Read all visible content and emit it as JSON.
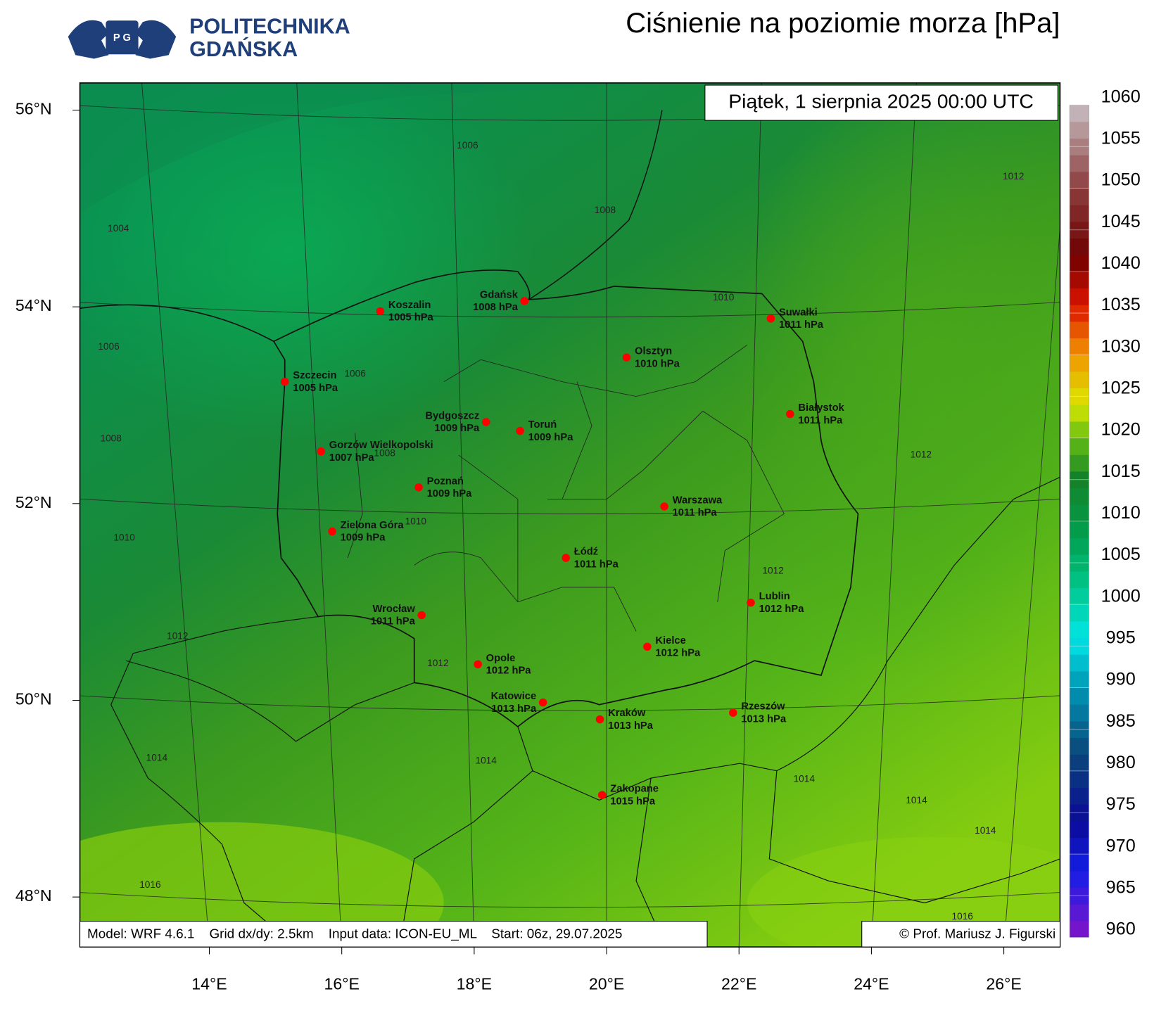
{
  "header": {
    "logo_line1": "POLITECHNIKA",
    "logo_line2": "GDAŃSKA",
    "title": "Ciśnienie na poziomie morza [hPa]"
  },
  "valid_time": "Piątek, 1 sierpnia 2025 00:00 UTC",
  "cities": [
    {
      "name": "Koszalin",
      "value": 1005,
      "value_label": "1005 hPa"
    },
    {
      "name": "Gdańsk",
      "value": 1008,
      "value_label": "1008 hPa"
    },
    {
      "name": "Szczecin",
      "value": 1005,
      "value_label": "1005 hPa"
    },
    {
      "name": "Bydgoszcz",
      "value": 1009,
      "value_label": "1009 hPa"
    },
    {
      "name": "Toruń",
      "value": 1009,
      "value_label": "1009 hPa"
    },
    {
      "name": "Gorzów Wielkopolski",
      "value": 1007,
      "value_label": "1007 hPa"
    },
    {
      "name": "Poznań",
      "value": 1009,
      "value_label": "1009 hPa"
    },
    {
      "name": "Zielona Góra",
      "value": 1009,
      "value_label": "1009 hPa"
    },
    {
      "name": "Wrocław",
      "value": 1011,
      "value_label": "1011 hPa"
    },
    {
      "name": "Opole",
      "value": 1012,
      "value_label": "1012 hPa"
    },
    {
      "name": "Katowice",
      "value": 1013,
      "value_label": "1013 hPa"
    },
    {
      "name": "Kraków",
      "value": 1013,
      "value_label": "1013 hPa"
    },
    {
      "name": "Zakopane",
      "value": 1015,
      "value_label": "1015 hPa"
    },
    {
      "name": "Łódź",
      "value": 1011,
      "value_label": "1011 hPa"
    },
    {
      "name": "Warszawa",
      "value": 1011,
      "value_label": "1011 hPa"
    },
    {
      "name": "Olsztyn",
      "value": 1010,
      "value_label": "1010 hPa"
    },
    {
      "name": "Suwałki",
      "value": 1011,
      "value_label": "1011 hPa"
    },
    {
      "name": "Białystok",
      "value": 1011,
      "value_label": "1011 hPa"
    },
    {
      "name": "Lublin",
      "value": 1012,
      "value_label": "1012 hPa"
    },
    {
      "name": "Kielce",
      "value": 1012,
      "value_label": "1012 hPa"
    },
    {
      "name": "Rzeszów",
      "value": 1013,
      "value_label": "1013 hPa"
    }
  ],
  "contour_labels": [
    1006,
    1008,
    1004,
    1006,
    1006,
    1008,
    1008,
    1010,
    1012,
    1012,
    1010,
    1010,
    1012,
    1012,
    1012,
    1014,
    1014,
    1014,
    1014,
    1014,
    1016,
    1016
  ],
  "lat_ticks": [
    {
      "value": 56,
      "label": "56°N"
    },
    {
      "value": 54,
      "label": "54°N"
    },
    {
      "value": 52,
      "label": "52°N"
    },
    {
      "value": 50,
      "label": "50°N"
    },
    {
      "value": 48,
      "label": "48°N"
    }
  ],
  "lon_ticks": [
    {
      "value": 14,
      "label": "14°E"
    },
    {
      "value": 16,
      "label": "16°E"
    },
    {
      "value": 18,
      "label": "18°E"
    },
    {
      "value": 20,
      "label": "20°E"
    },
    {
      "value": 22,
      "label": "22°E"
    },
    {
      "value": 24,
      "label": "24°E"
    },
    {
      "value": 26,
      "label": "26°E"
    }
  ],
  "colorbar": {
    "lim": [
      960,
      1060
    ],
    "ticks": [
      960,
      965,
      970,
      975,
      980,
      985,
      990,
      995,
      1000,
      1005,
      1010,
      1015,
      1020,
      1025,
      1030,
      1035,
      1040,
      1045,
      1050,
      1055,
      1060
    ]
  },
  "footer": {
    "model_info": "Model: WRF 4.6.1    Grid dx/dy: 2.5km    Input data: ICON-EU_ML    Start: 06z, 29.07.2025",
    "copyright": "© Prof. Mariusz J. Figurski"
  }
}
